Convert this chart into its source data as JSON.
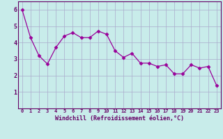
{
  "x": [
    0,
    1,
    2,
    3,
    4,
    5,
    6,
    7,
    8,
    9,
    10,
    11,
    12,
    13,
    14,
    15,
    16,
    17,
    18,
    19,
    20,
    21,
    22,
    23
  ],
  "y": [
    6.0,
    4.3,
    3.2,
    2.7,
    3.7,
    4.4,
    4.6,
    4.3,
    4.3,
    4.7,
    4.5,
    3.5,
    3.1,
    3.35,
    2.75,
    2.75,
    2.55,
    2.65,
    2.1,
    2.1,
    2.65,
    2.45,
    2.55,
    1.4
  ],
  "line_color": "#990099",
  "marker": "D",
  "marker_size": 2.5,
  "bg_color": "#c8ecea",
  "grid_color": "#aaaacc",
  "xlabel": "Windchill (Refroidissement éolien,°C)",
  "xlabel_color": "#660066",
  "tick_color": "#660066",
  "spine_color": "#660066",
  "ylim": [
    0,
    6.5
  ],
  "yticks": [
    1,
    2,
    3,
    4,
    5,
    6
  ],
  "xlim": [
    -0.5,
    23.5
  ],
  "xticks": [
    0,
    1,
    2,
    3,
    4,
    5,
    6,
    7,
    8,
    9,
    10,
    11,
    12,
    13,
    14,
    15,
    16,
    17,
    18,
    19,
    20,
    21,
    22,
    23
  ]
}
